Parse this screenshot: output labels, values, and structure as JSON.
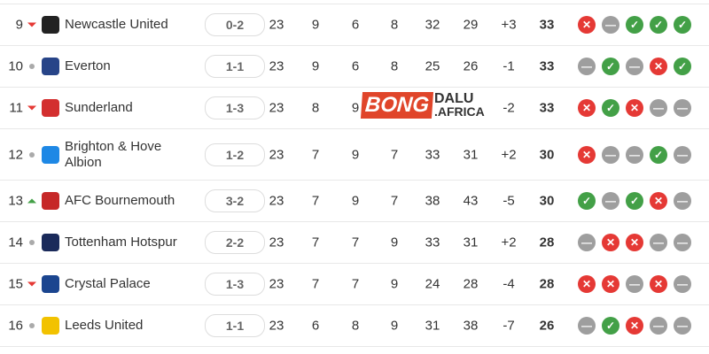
{
  "colors": {
    "win": "#43a047",
    "draw": "#9e9e9e",
    "loss": "#e53935"
  },
  "watermark": {
    "brand": "BONG",
    "brand2": "DALU",
    "brand3": ".AFRICA"
  },
  "rows": [
    {
      "pos": "9",
      "trend": "down",
      "team": "Newcastle United",
      "logo_color": "#222",
      "last": "0-2",
      "p": "23",
      "w": "9",
      "d": "6",
      "l": "8",
      "gf": "32",
      "ga": "29",
      "gd": "+3",
      "pts": "33",
      "form": [
        "L",
        "D",
        "W",
        "W",
        "W"
      ]
    },
    {
      "pos": "10",
      "trend": "same",
      "team": "Everton",
      "logo_color": "#274488",
      "last": "1-1",
      "p": "23",
      "w": "9",
      "d": "6",
      "l": "8",
      "gf": "25",
      "ga": "26",
      "gd": "-1",
      "pts": "33",
      "form": [
        "D",
        "W",
        "D",
        "L",
        "W"
      ]
    },
    {
      "pos": "11",
      "trend": "down",
      "team": "Sunderland",
      "logo_color": "#d32f2f",
      "last": "1-3",
      "p": "23",
      "w": "8",
      "d": "9",
      "l": "",
      "gf": "",
      "ga": "",
      "gd": "-2",
      "pts": "33",
      "form": [
        "L",
        "W",
        "L",
        "D",
        "D"
      ]
    },
    {
      "pos": "12",
      "trend": "same",
      "team": "Brighton & Hove Albion",
      "logo_color": "#1e88e5",
      "last": "1-2",
      "p": "23",
      "w": "7",
      "d": "9",
      "l": "7",
      "gf": "33",
      "ga": "31",
      "gd": "+2",
      "pts": "30",
      "form": [
        "L",
        "D",
        "D",
        "W",
        "D"
      ]
    },
    {
      "pos": "13",
      "trend": "up",
      "team": "AFC Bournemouth",
      "logo_color": "#c62828",
      "last": "3-2",
      "p": "23",
      "w": "7",
      "d": "9",
      "l": "7",
      "gf": "38",
      "ga": "43",
      "gd": "-5",
      "pts": "30",
      "form": [
        "W",
        "D",
        "W",
        "L",
        "D"
      ]
    },
    {
      "pos": "14",
      "trend": "same",
      "team": "Tottenham Hotspur",
      "logo_color": "#1a2a5a",
      "last": "2-2",
      "p": "23",
      "w": "7",
      "d": "7",
      "l": "9",
      "gf": "33",
      "ga": "31",
      "gd": "+2",
      "pts": "28",
      "form": [
        "D",
        "L",
        "L",
        "D",
        "D"
      ]
    },
    {
      "pos": "15",
      "trend": "down",
      "team": "Crystal Palace",
      "logo_color": "#1b458f",
      "last": "1-3",
      "p": "23",
      "w": "7",
      "d": "7",
      "l": "9",
      "gf": "24",
      "ga": "28",
      "gd": "-4",
      "pts": "28",
      "form": [
        "L",
        "L",
        "D",
        "L",
        "D"
      ]
    },
    {
      "pos": "16",
      "trend": "same",
      "team": "Leeds United",
      "logo_color": "#f2c200",
      "last": "1-1",
      "p": "23",
      "w": "6",
      "d": "8",
      "l": "9",
      "gf": "31",
      "ga": "38",
      "gd": "-7",
      "pts": "26",
      "form": [
        "D",
        "W",
        "L",
        "D",
        "D"
      ]
    }
  ]
}
